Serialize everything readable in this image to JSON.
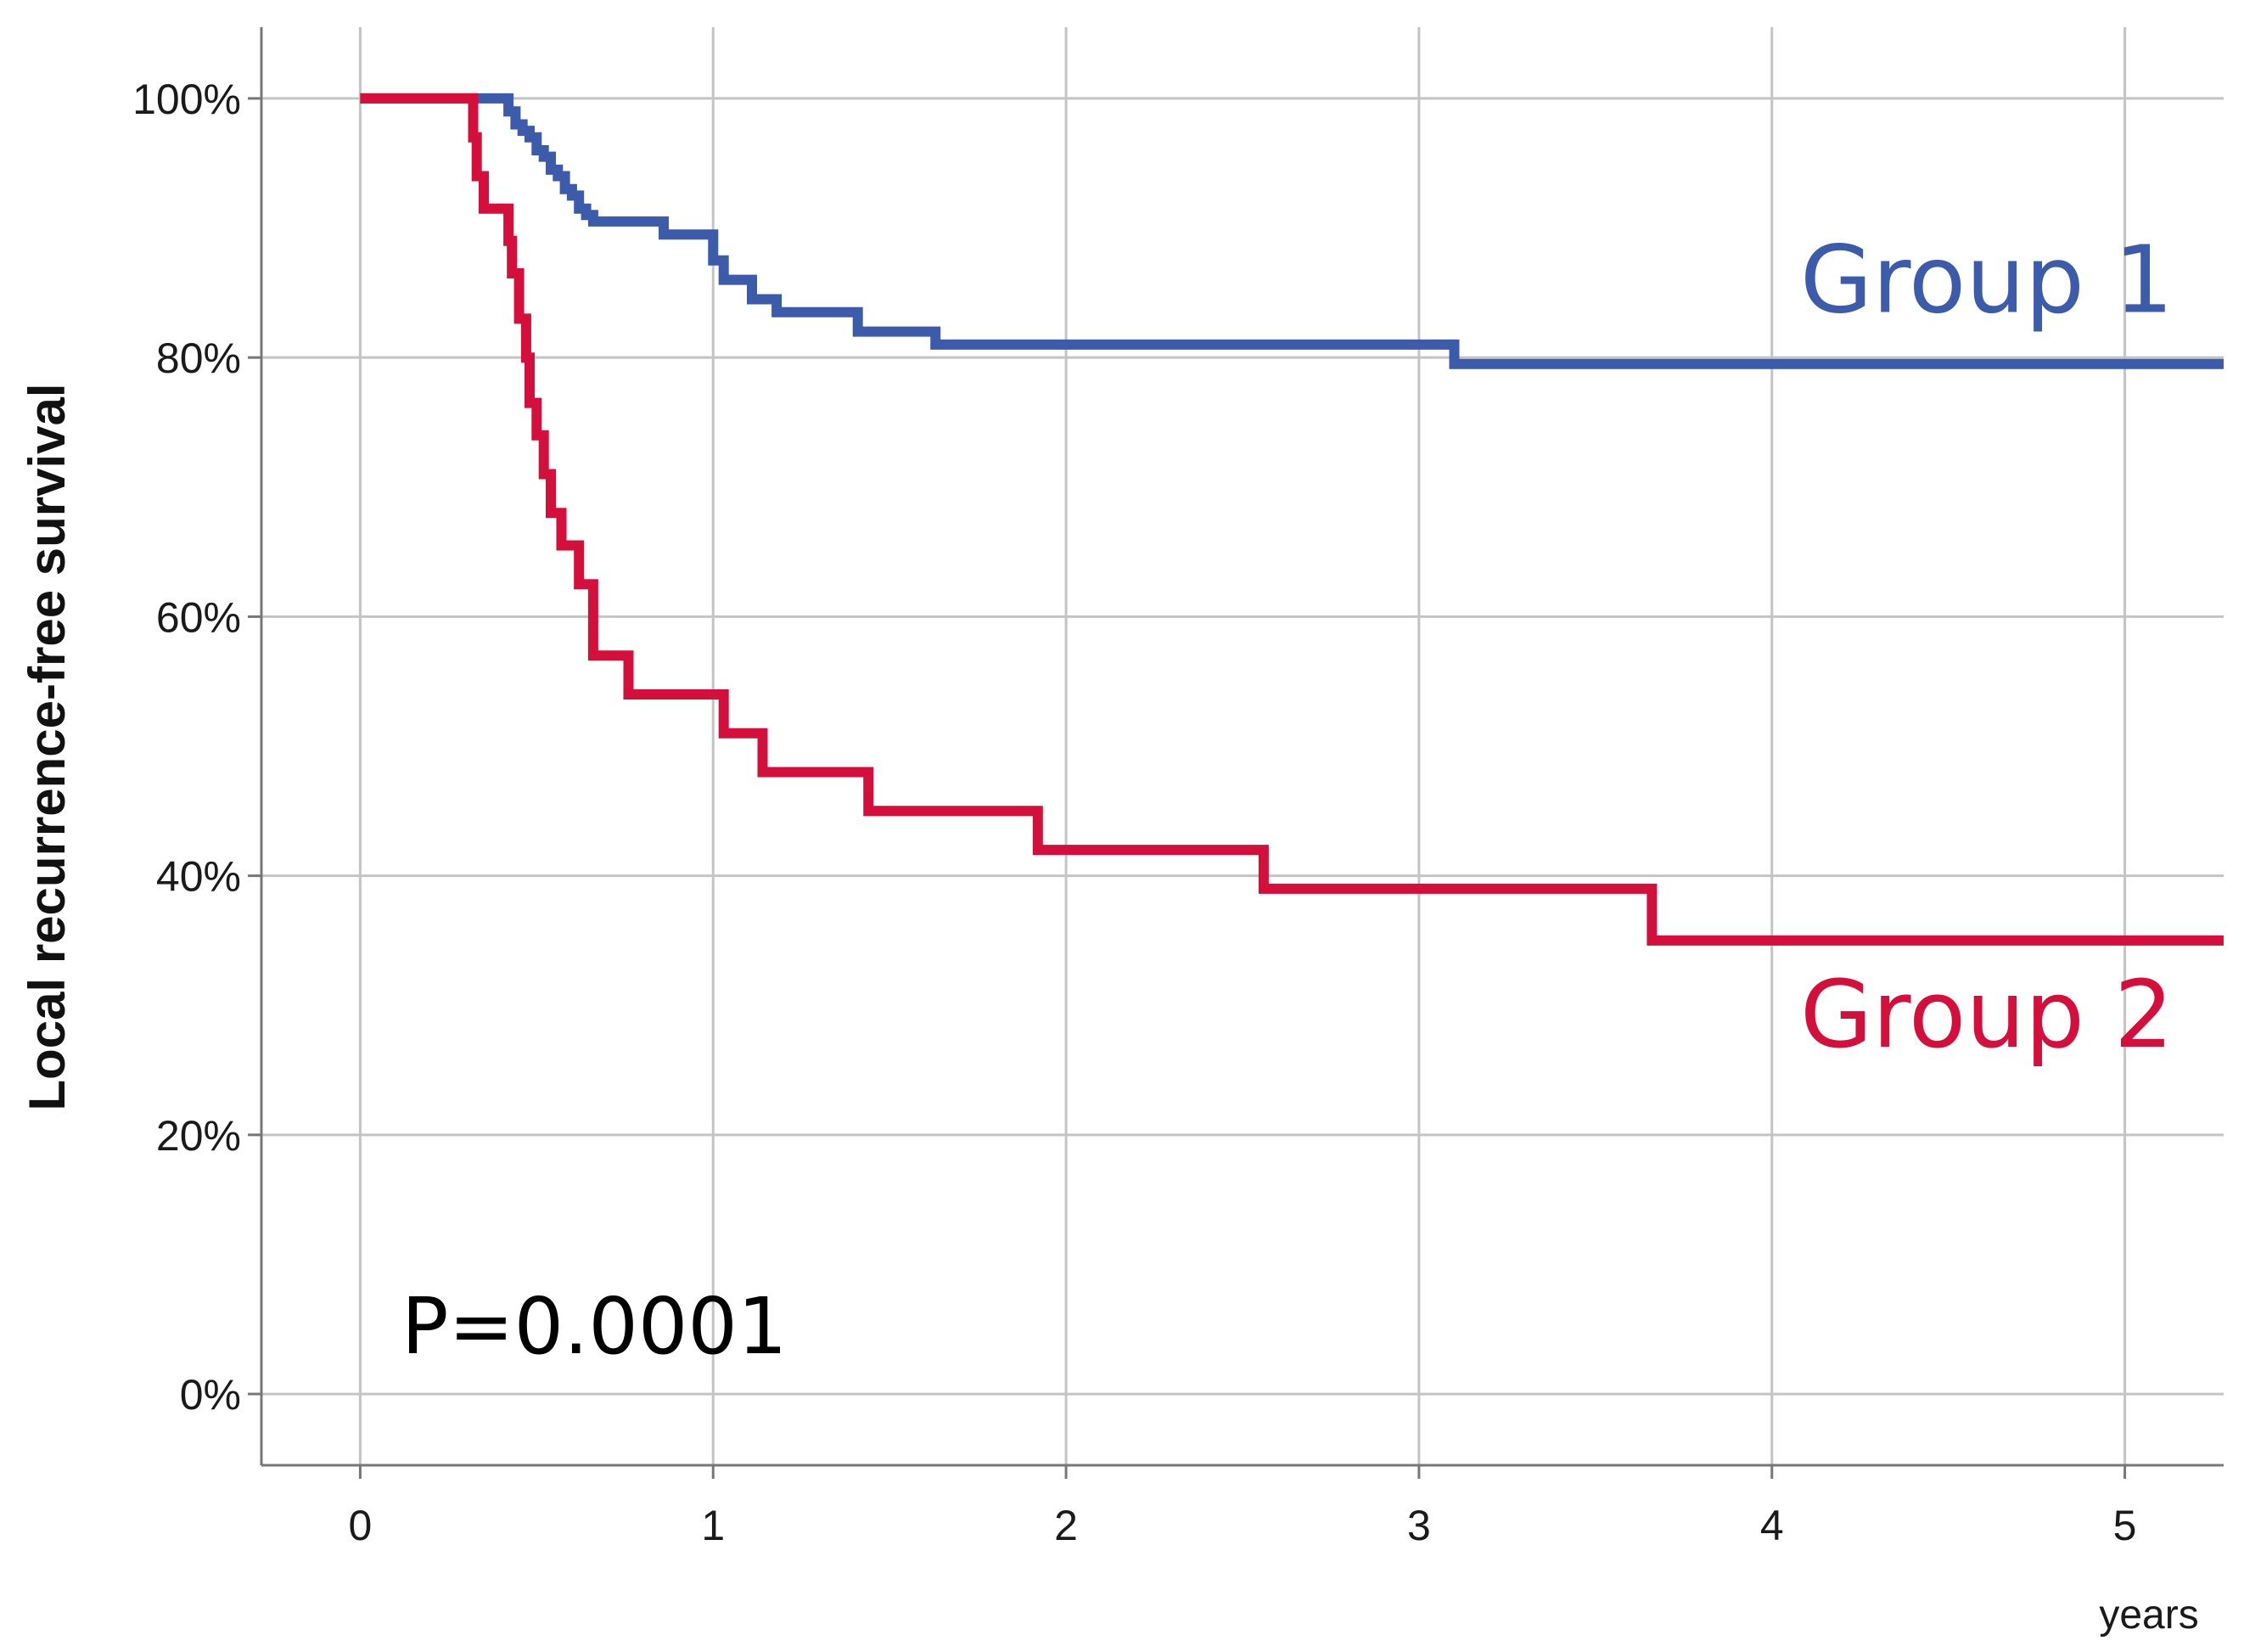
{
  "chart_data": {
    "type": "line",
    "title": "",
    "xlabel": "years",
    "ylabel": "Local recurrence-free survival",
    "xlim": [
      -0.28,
      5.28
    ],
    "ylim": [
      -0.055,
      1.055
    ],
    "x_ticks": [
      0,
      1,
      2,
      3,
      4,
      5
    ],
    "x_tick_labels": [
      "0",
      "1",
      "2",
      "3",
      "4",
      "5"
    ],
    "y_ticks": [
      0,
      0.2,
      0.4,
      0.6,
      0.8,
      1.0
    ],
    "y_tick_labels": [
      "0%",
      "20%",
      "40%",
      "60%",
      "80%",
      "100%"
    ],
    "grid": true,
    "step": true,
    "annotation": "P=0.0001",
    "series": [
      {
        "name": "Group 1",
        "color": "#3d5bab",
        "label_position": {
          "x": 4.08,
          "y": 0.835
        },
        "x": [
          0,
          0.4,
          0.42,
          0.44,
          0.46,
          0.48,
          0.5,
          0.52,
          0.54,
          0.56,
          0.58,
          0.6,
          0.62,
          0.64,
          0.66,
          0.86,
          1.0,
          1.03,
          1.11,
          1.18,
          1.41,
          1.63,
          3.1,
          5.28
        ],
        "y": [
          1.0,
          1.0,
          0.99,
          0.98,
          0.975,
          0.97,
          0.96,
          0.955,
          0.945,
          0.94,
          0.93,
          0.925,
          0.915,
          0.91,
          0.905,
          0.895,
          0.875,
          0.86,
          0.845,
          0.835,
          0.82,
          0.81,
          0.795,
          0.795
        ]
      },
      {
        "name": "Group 2",
        "color": "#d40f3b",
        "label_position": {
          "x": 4.08,
          "y": 0.268
        },
        "x": [
          0,
          0.32,
          0.33,
          0.35,
          0.42,
          0.43,
          0.45,
          0.47,
          0.48,
          0.5,
          0.52,
          0.54,
          0.57,
          0.62,
          0.66,
          0.76,
          1.03,
          1.14,
          1.44,
          1.92,
          2.56,
          3.66,
          5.28
        ],
        "y": [
          1.0,
          0.97,
          0.94,
          0.915,
          0.89,
          0.865,
          0.83,
          0.8,
          0.765,
          0.74,
          0.71,
          0.68,
          0.655,
          0.625,
          0.57,
          0.54,
          0.51,
          0.48,
          0.45,
          0.42,
          0.39,
          0.35,
          0.35
        ]
      }
    ]
  }
}
